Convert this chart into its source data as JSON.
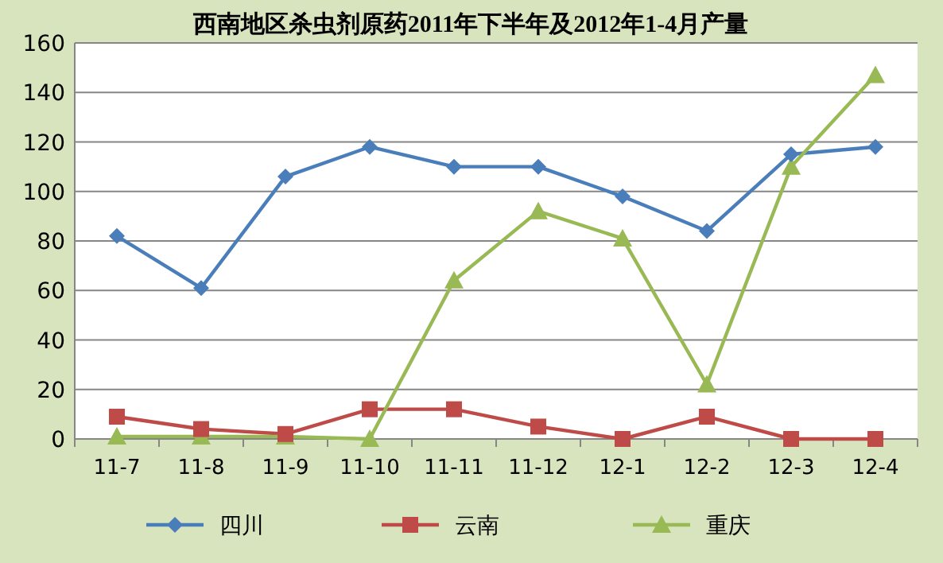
{
  "chart_data": {
    "type": "line",
    "title": "西南地区杀虫剂原药2011年下半年及2012年1-4月产量",
    "categories": [
      "11-7",
      "11-8",
      "11-9",
      "11-10",
      "11-11",
      "11-12",
      "12-1",
      "12-2",
      "12-3",
      "12-4"
    ],
    "series": [
      {
        "name": "四川",
        "color": "#4a7ebb",
        "marker": "diamond",
        "values": [
          82,
          61,
          106,
          118,
          110,
          110,
          98,
          84,
          115,
          118
        ]
      },
      {
        "name": "云南",
        "color": "#be4b48",
        "marker": "square",
        "values": [
          9,
          4,
          2,
          12,
          12,
          5,
          0,
          9,
          0,
          0
        ]
      },
      {
        "name": "重庆",
        "color": "#98b954",
        "marker": "triangle",
        "values": [
          1,
          1,
          1,
          0,
          64,
          92,
          81,
          22,
          110,
          147
        ]
      }
    ],
    "ylim": [
      0,
      160
    ],
    "yticks": [
      0,
      20,
      40,
      60,
      80,
      100,
      120,
      140,
      160
    ],
    "grid": "y",
    "legend": "bottom"
  }
}
